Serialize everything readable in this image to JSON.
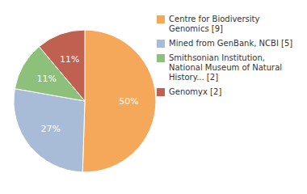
{
  "chart_data": {
    "type": "pie",
    "categories": [
      "Centre for Biodiversity\nGenomics [9]",
      "Mined from GenBank, NCBI [5]",
      "Smithsonian Institution,\nNational Museum of Natural\nHistory... [2]",
      "Genomyx [2]"
    ],
    "values": [
      50,
      27,
      11,
      11
    ],
    "value_labels": [
      "50%",
      "27%",
      "11%",
      "11%"
    ],
    "colors": [
      "#F5A85A",
      "#A8BCD8",
      "#8DC07A",
      "#C06050"
    ],
    "data_labels": true,
    "legend": "right"
  }
}
